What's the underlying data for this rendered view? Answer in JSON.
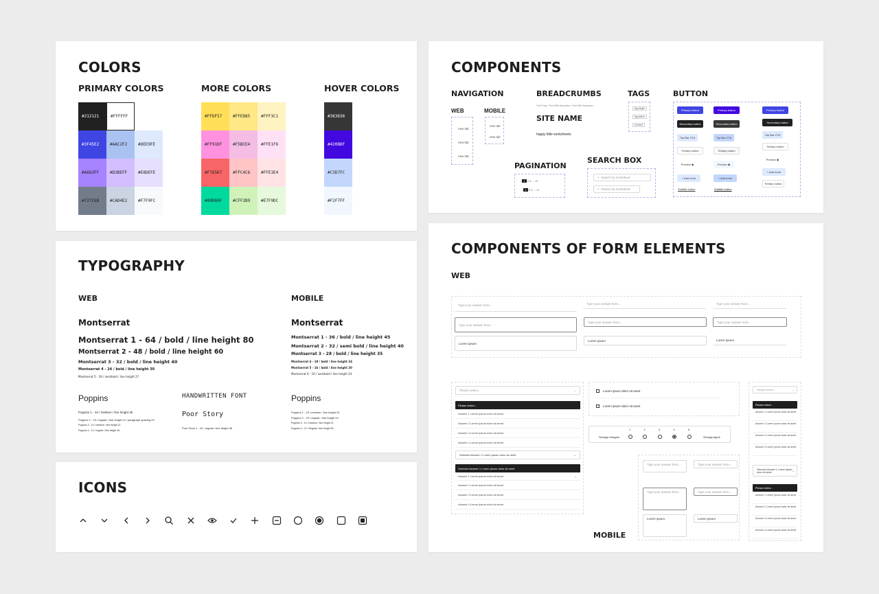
{
  "colors": {
    "title": "COLORS",
    "primary_title": "PRIMARY COLORS",
    "more_title": "MORE COLORS",
    "hover_title": "HOVER COLORS",
    "primary": [
      [
        "#212121",
        "#FFFFFF",
        ""
      ],
      [
        "#3F45E2",
        "#AAC2F2",
        "#DEE9FE"
      ],
      [
        "#A683FF",
        "#D3BEFF",
        "#E8DEFE"
      ],
      [
        "#727C8B",
        "#CAD4E2",
        "#F7F9FC"
      ]
    ],
    "more": [
      [
        "#FFDF57",
        "#FFE885",
        "#FFF3C1"
      ],
      [
        "#FF91DF",
        "#F5BCE4",
        "#FFE1F6"
      ],
      [
        "#F76567",
        "#FFC4C6",
        "#FFE3E4"
      ],
      [
        "#00DA9F",
        "#CFF2B9",
        "#E7F9DC"
      ]
    ],
    "hover": [
      "#363636",
      "#4208DF",
      "#C3D7FC",
      "#F2F7FF"
    ]
  },
  "typography": {
    "title": "TYPOGRAPHY",
    "web": "WEB",
    "mobile": "MOBILE",
    "montserrat": "Montserrat",
    "web_lines": [
      "Montserrat 1 - 64 / bold / line height 80",
      "Montserrat 2 - 48 / bold / line height 60",
      "Montserrat 3 - 32 / bold / line height 40",
      "Montserrat 4 - 24 / bold / line height 30",
      "Montserrat 5 - 18 / semibold / line height 27"
    ],
    "mobile_lines": [
      "Montserrat 1 - 36 / bold / line height 45",
      "Montserrat 2 - 32 / semi bold / line height 40",
      "Montserrat 3 - 28 / bold / line height 35",
      "Montserrat 4 - 18 / bold / line height 24",
      "Montserrat 5 - 16 / bold / line height 20",
      "Montserrat 6 - 16 / semibold / line height 24"
    ],
    "poppins": "Poppins",
    "poppins_web": [
      "Poppins 1 - 24 / medium / line height 36",
      "Poppins 2 - 15 / regular / line height 24 / paragraph spacing 24",
      "Poppins 3 - 14 / medium / line height 21",
      "Poppins 4 - 12 / regular / line height 18"
    ],
    "poppins_mobile": [
      "Poppins 1 - 15 / medium / line height 24",
      "Poppins 2 - 15 / regular / line height 24",
      "Poppins 3 - 14 / medium / line height 21",
      "Poppins 4 - 12 / Regular / line height 18"
    ],
    "handwritten": "HANDWRITTEN FONT",
    "poor_story": "Poor Story",
    "poor_story_line": "Poor Story 1 - 24 / regular / line height 36"
  },
  "icons": {
    "title": "ICONS",
    "list": [
      "chevron-up-icon",
      "chevron-down-icon",
      "chevron-left-icon",
      "chevron-right-icon",
      "search-icon",
      "close-icon",
      "eye-icon",
      "check-icon",
      "plus-icon",
      "minus-box-icon",
      "radio-empty-icon",
      "radio-filled-icon",
      "checkbox-empty-icon",
      "checkbox-filled-icon"
    ]
  },
  "components": {
    "title": "COMPONENTS",
    "navigation": "NAVIGATION",
    "web": "WEB",
    "mobile": "MOBILE",
    "nav_tab": "new tab",
    "breadcrumbs": "BREADCRUMBS",
    "breadcrumb_items": [
      "Text Entry",
      "Text With Separator",
      "Text With Separator"
    ],
    "site_name_title": "SITE NAME",
    "site_name": "happy little worksheets",
    "tags": "TAGS",
    "tag_labels": [
      "tag single",
      "tag active",
      "number"
    ],
    "pagination": "PAGINATION",
    "search_box": "SEARCH BOX",
    "search_placeholder": "Search by worksheet",
    "button": "BUTTON",
    "buttons": {
      "primary": "Primary button",
      "secondary": "Secondary button",
      "top_bar": "Top Bar CTA",
      "tertiary": "Tertiary button",
      "preview": "Preview",
      "add_more": "+ Add more",
      "subtitle": "Subtitle button"
    }
  },
  "form": {
    "title": "COMPONENTS OF FORM ELEMENTS",
    "web": "WEB",
    "mobile": "MOBILE",
    "placeholder": "Type your answer here...",
    "answer_text": "Lorem ipsum",
    "please_select": "Please select...",
    "answers": [
      "Answer 1 Lorem ipsum dolor sit amet",
      "Answer 2 Lorem ipsum dolor sit amet",
      "Answer 3 Lorem ipsum dolor sit amet",
      "Answer 4 Lorem ipsum dolor sit amet"
    ],
    "selected": "Selected Answer 1 Lorem ipsum dolor sit amet",
    "checkbox_label": "Lorem ipsum dolor sit amet",
    "scale": [
      "1",
      "2",
      "3",
      "4",
      "5"
    ],
    "strongly_disagree": "Strongly Disagree",
    "strongly_agree": "Strongly Agree",
    "mobile_answers": [
      "Answer 1 Lorem ipsum dolor sit amet",
      "Answer 2 Lorem ipsum dolor sit amet",
      "Answer 3 Lorem ipsum dolor sit amet",
      "Answer 4 Lorem ipsum dolor sit amet"
    ],
    "mobile_selected": "Selected Answer 1 Lorem ipsum dolor sit amet"
  }
}
